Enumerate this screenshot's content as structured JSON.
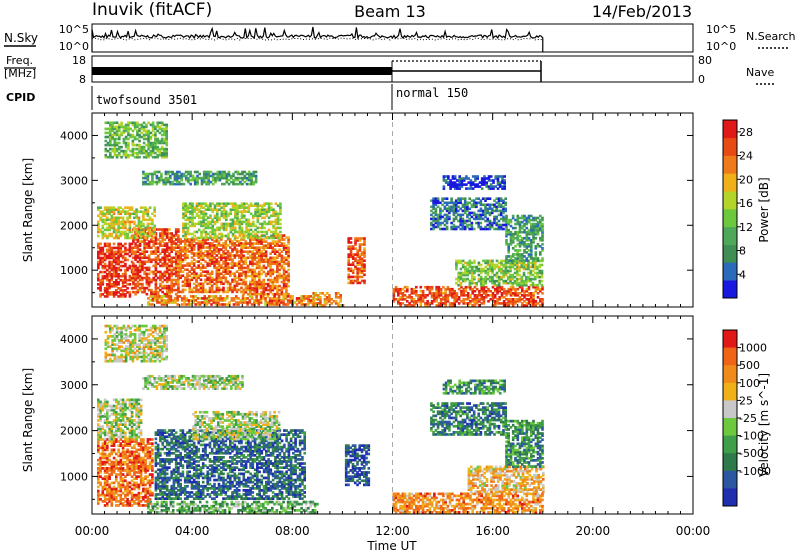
{
  "header": {
    "station": "Inuvik (fitACF)",
    "beam": "Beam 13",
    "date": "14/Feb/2013"
  },
  "time_axis": {
    "label": "Time UT",
    "ticks": [
      "00:00",
      "04:00",
      "08:00",
      "12:00",
      "16:00",
      "20:00",
      "00:00"
    ],
    "range_hours": [
      0,
      24
    ],
    "data_end_hours": 18,
    "mode_change_hours": 12
  },
  "noise_panel": {
    "label": "N.Sky",
    "left_ticks": [
      "10^5",
      "10^0"
    ],
    "right_ticks": [
      "10^5",
      "10^0"
    ],
    "legend": "N.Search"
  },
  "freq_panel": {
    "label_line1": "Freq.",
    "label_line2": "[MHz]",
    "left_ticks": [
      "18",
      "8"
    ],
    "right_ticks": [
      "80",
      "0"
    ],
    "legend": "Nave"
  },
  "cpid_panel": {
    "label": "CPID",
    "modes": [
      "twofsound 3501",
      "normal 150"
    ]
  },
  "chart_data": [
    {
      "type": "heatmap",
      "title": "",
      "xlabel": "Time UT",
      "ylabel": "Slant Range [km]",
      "xlim": [
        0,
        24
      ],
      "ylim": [
        180,
        4500
      ],
      "yticks": [
        "1000",
        "2000",
        "3000",
        "4000"
      ],
      "colorbar": {
        "label": "Power [dB]",
        "ticks": [
          "4",
          "8",
          "12",
          "16",
          "20",
          "24",
          "28"
        ],
        "range": [
          0,
          30
        ],
        "colors": [
          "#1818e0",
          "#2a6ab8",
          "#3f8f55",
          "#4ea85a",
          "#6cc83c",
          "#b4d42a",
          "#f0b01a",
          "#f07a1a",
          "#e84a14",
          "#e01818"
        ]
      },
      "regions": [
        {
          "t0": 0.2,
          "t1": 1.6,
          "r0": 400,
          "r1": 1600,
          "level": 0.9
        },
        {
          "t0": 1.6,
          "t1": 3.4,
          "r0": 450,
          "r1": 1900,
          "level": 0.85
        },
        {
          "t0": 3.4,
          "t1": 6.0,
          "r0": 500,
          "r1": 1700,
          "level": 0.8
        },
        {
          "t0": 6.0,
          "t1": 7.8,
          "r0": 450,
          "r1": 1800,
          "level": 0.78
        },
        {
          "t0": 0.2,
          "t1": 2.5,
          "r0": 1700,
          "r1": 2400,
          "level": 0.55
        },
        {
          "t0": 3.6,
          "t1": 7.5,
          "r0": 1700,
          "r1": 2500,
          "level": 0.5
        },
        {
          "t0": 2.2,
          "t1": 8.8,
          "r0": 220,
          "r1": 420,
          "level": 0.75
        },
        {
          "t0": 8.8,
          "t1": 10.0,
          "r0": 200,
          "r1": 480,
          "level": 0.7
        },
        {
          "t0": 10.2,
          "t1": 10.9,
          "r0": 700,
          "r1": 1700,
          "level": 0.85
        },
        {
          "t0": 12.0,
          "t1": 18.0,
          "r0": 200,
          "r1": 650,
          "level": 0.85
        },
        {
          "t0": 14.5,
          "t1": 18.0,
          "r0": 650,
          "r1": 1200,
          "level": 0.45
        },
        {
          "t0": 16.5,
          "t1": 18.0,
          "r0": 1200,
          "r1": 2200,
          "level": 0.3
        },
        {
          "t0": 13.5,
          "t1": 16.5,
          "r0": 1900,
          "r1": 2600,
          "level": 0.2
        },
        {
          "t0": 2.0,
          "t1": 6.5,
          "r0": 2900,
          "r1": 3200,
          "level": 0.3
        },
        {
          "t0": 14.0,
          "t1": 16.5,
          "r0": 2800,
          "r1": 3100,
          "level": 0.1
        },
        {
          "t0": 0.5,
          "t1": 3.0,
          "r0": 3500,
          "r1": 4300,
          "level": 0.4
        }
      ]
    },
    {
      "type": "heatmap",
      "title": "",
      "xlabel": "Time UT",
      "ylabel": "Slant Range [km]",
      "xlim": [
        0,
        24
      ],
      "ylim": [
        180,
        4500
      ],
      "yticks": [
        "1000",
        "2000",
        "3000",
        "4000"
      ],
      "colorbar": {
        "label": "Velocity [m s^-1]",
        "ticks": [
          "1000",
          "500",
          "100",
          "25",
          "-25",
          "-100",
          "-500",
          "-1000"
        ],
        "colors": [
          "#1f2fb0",
          "#2b58a0",
          "#2f7a4a",
          "#3f9e48",
          "#6cc83c",
          "#c8c8c8",
          "#f0b01a",
          "#f08a1a",
          "#f06418",
          "#e01818"
        ]
      },
      "regions": [
        {
          "t0": 0.2,
          "t1": 2.4,
          "r0": 350,
          "r1": 1800,
          "level": 0.82
        },
        {
          "t0": 0.2,
          "t1": 2.0,
          "r0": 1800,
          "r1": 2700,
          "level": 0.5
        },
        {
          "t0": 2.5,
          "t1": 8.5,
          "r0": 500,
          "r1": 2000,
          "level": 0.18
        },
        {
          "t0": 4.0,
          "t1": 7.5,
          "r0": 1800,
          "r1": 2400,
          "level": 0.5
        },
        {
          "t0": 2.2,
          "t1": 9.0,
          "r0": 200,
          "r1": 450,
          "level": 0.4
        },
        {
          "t0": 10.1,
          "t1": 11.0,
          "r0": 800,
          "r1": 1700,
          "level": 0.12
        },
        {
          "t0": 12.0,
          "t1": 18.0,
          "r0": 200,
          "r1": 650,
          "level": 0.75
        },
        {
          "t0": 15.0,
          "t1": 18.0,
          "r0": 650,
          "r1": 1200,
          "level": 0.65
        },
        {
          "t0": 16.5,
          "t1": 18.0,
          "r0": 1200,
          "r1": 2200,
          "level": 0.3
        },
        {
          "t0": 13.5,
          "t1": 16.5,
          "r0": 1900,
          "r1": 2600,
          "level": 0.25
        },
        {
          "t0": 2.0,
          "t1": 6.0,
          "r0": 2900,
          "r1": 3200,
          "level": 0.5
        },
        {
          "t0": 14.0,
          "t1": 16.5,
          "r0": 2800,
          "r1": 3100,
          "level": 0.3
        },
        {
          "t0": 0.5,
          "t1": 3.0,
          "r0": 3500,
          "r1": 4300,
          "level": 0.55
        }
      ]
    }
  ]
}
